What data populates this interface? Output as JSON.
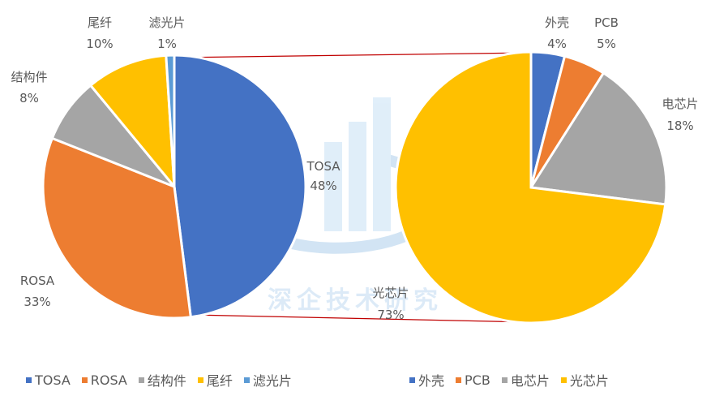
{
  "chart_data": [
    {
      "type": "pie",
      "categories": [
        "TOSA",
        "ROSA",
        "结构件",
        "尾纤",
        "滤光片"
      ],
      "values": [
        48,
        33,
        8,
        10,
        1
      ],
      "labels": [
        "48%",
        "33%",
        "8%",
        "10%",
        "1%"
      ],
      "colors": [
        "#4472C4",
        "#ED7D31",
        "#A5A5A5",
        "#FFC000",
        "#5B9BD5"
      ],
      "legend_position": "bottom"
    },
    {
      "type": "pie",
      "categories": [
        "外壳",
        "PCB",
        "电芯片",
        "光芯片"
      ],
      "values": [
        4,
        5,
        18,
        73
      ],
      "labels": [
        "4%",
        "5%",
        "18%",
        "73%"
      ],
      "colors": [
        "#4472C4",
        "#ED7D31",
        "#A5A5A5",
        "#FFC000"
      ],
      "legend_position": "bottom"
    }
  ],
  "watermark": {
    "text": "深企技术研究"
  }
}
